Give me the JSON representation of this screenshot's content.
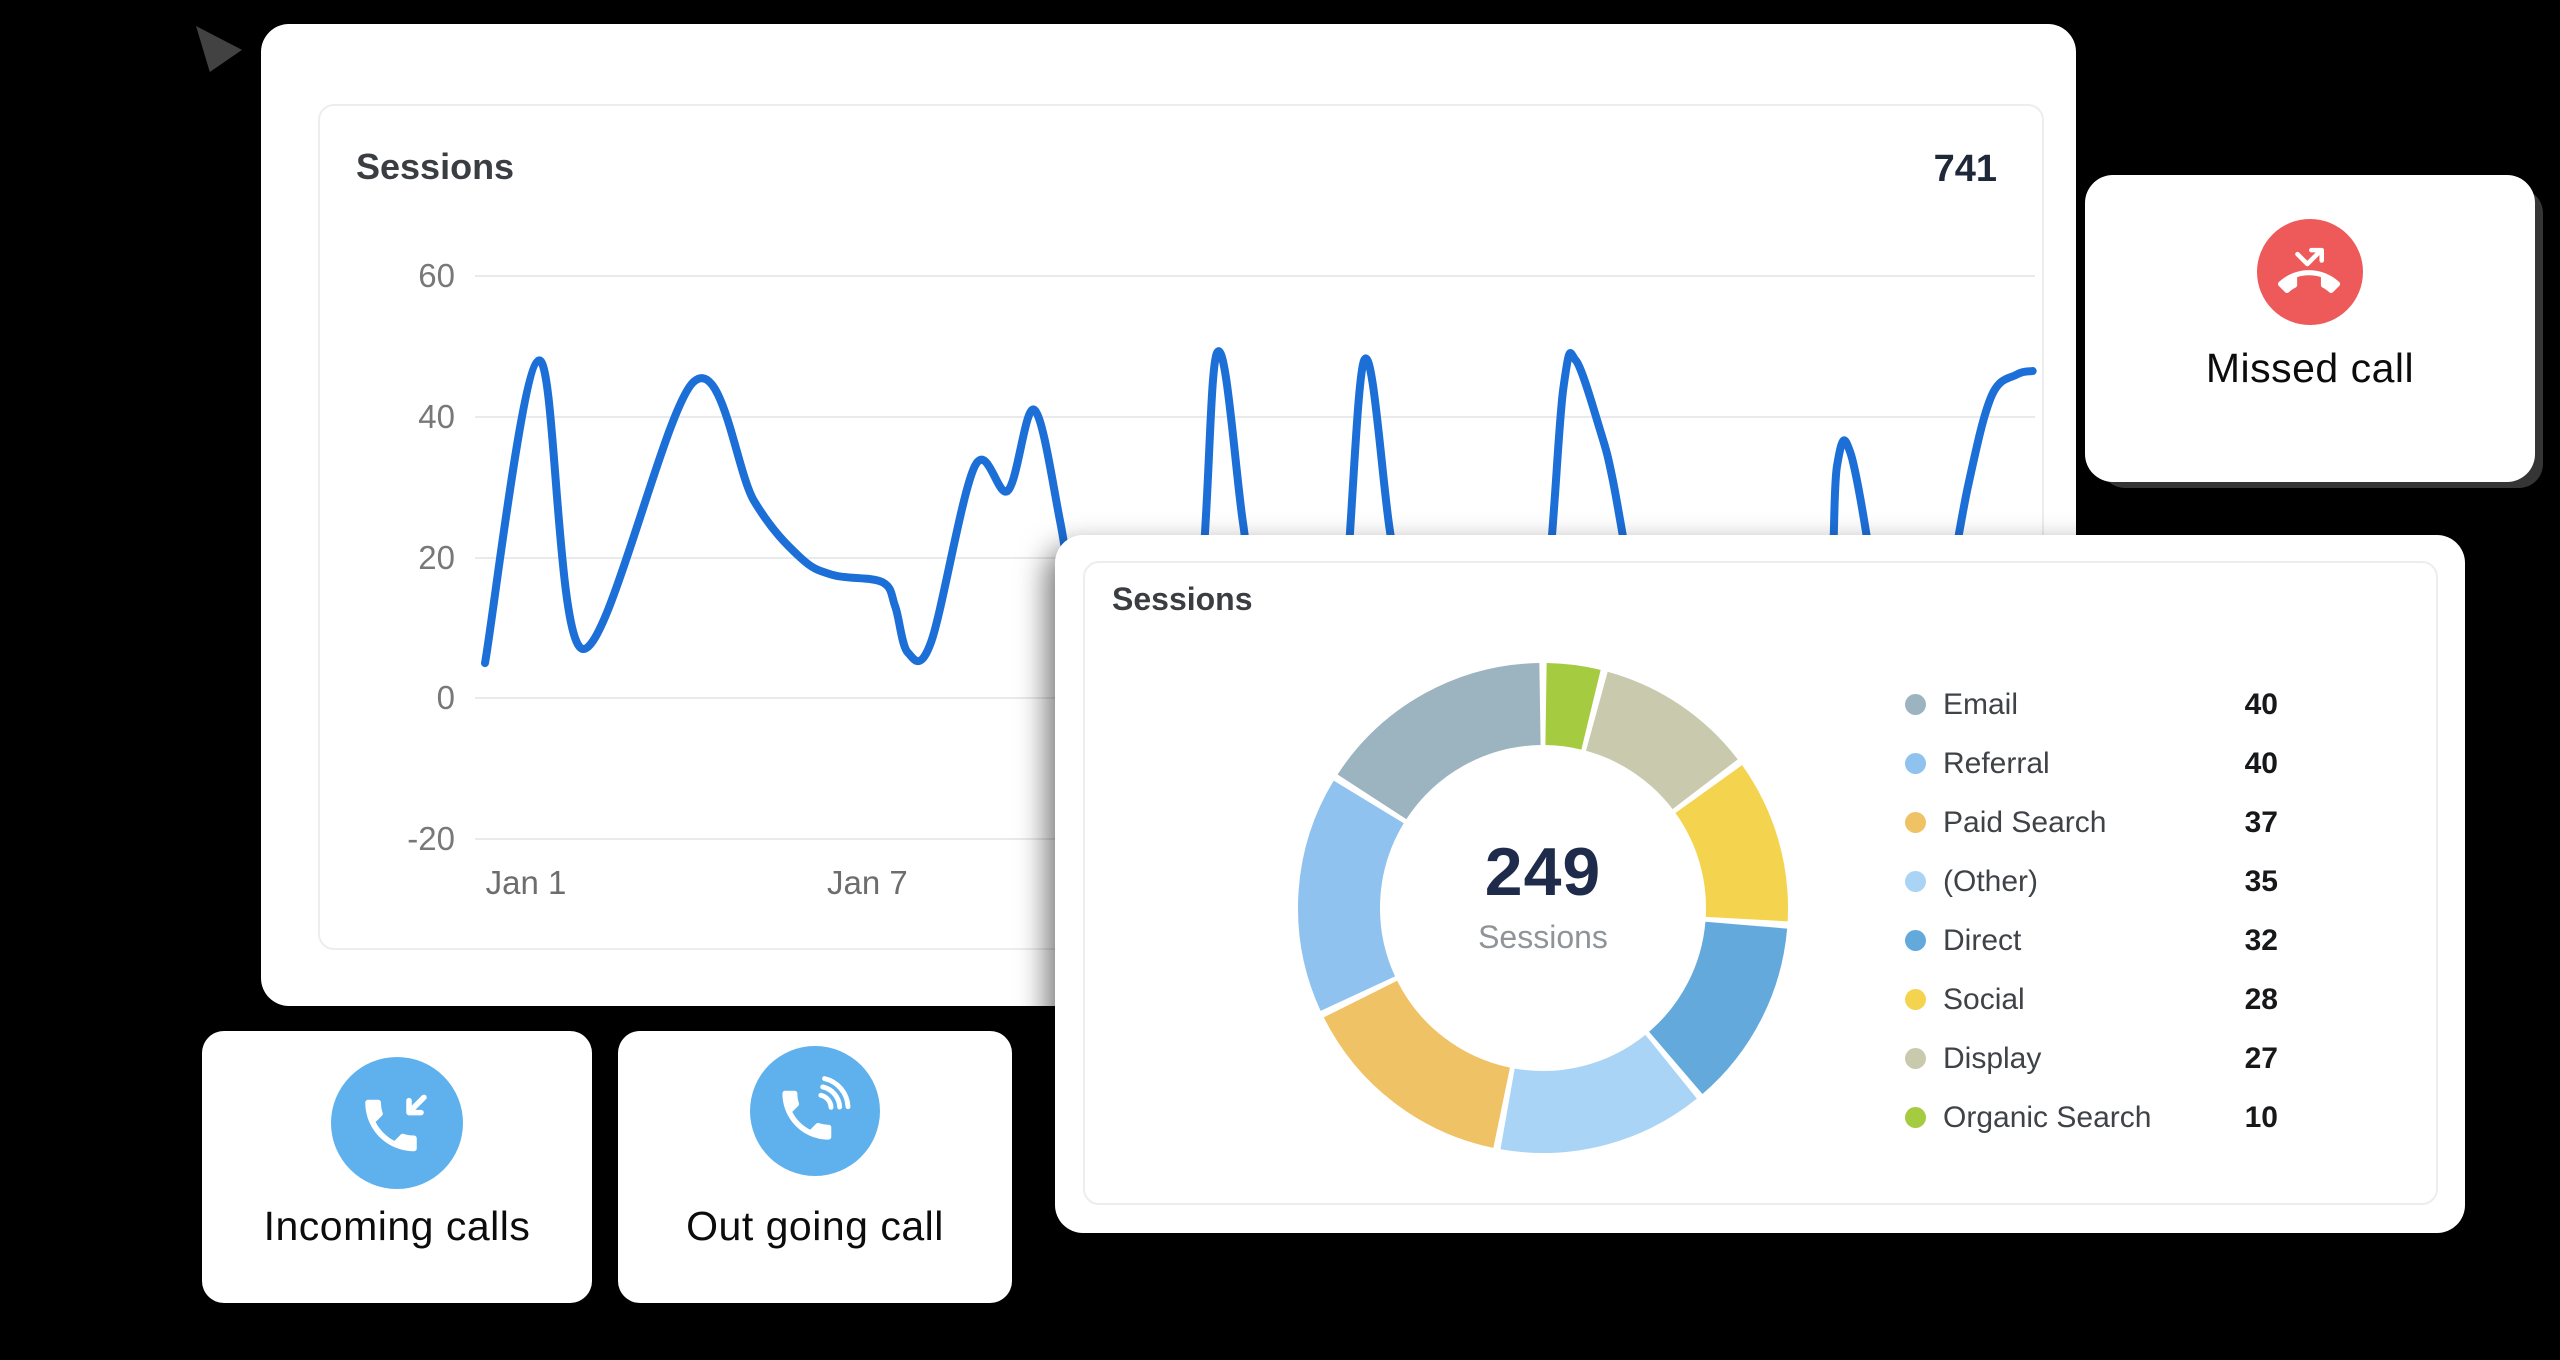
{
  "page": {
    "background": "#000000"
  },
  "chart_data": [
    {
      "type": "line",
      "title": "Sessions",
      "total_label": "741",
      "xlabel": "",
      "ylabel": "",
      "ylim": [
        -20,
        60
      ],
      "y_ticks": [
        60,
        40,
        20,
        0,
        -20
      ],
      "x_ticks": [
        {
          "label": "Jan 1",
          "day": 1
        },
        {
          "label": "Jan 7",
          "day": 7
        }
      ],
      "grid": "horizontal",
      "legend_position": "none",
      "line_color": "#1d6fd8",
      "series": [
        {
          "name": "Sessions",
          "points": [
            [
              0.28,
              5
            ],
            [
              1.23,
              48
            ],
            [
              2.0,
              7
            ],
            [
              3.95,
              45
            ],
            [
              5.01,
              28
            ],
            [
              5.82,
              20
            ],
            [
              6.4,
              17.5
            ],
            [
              7.26,
              16.5
            ],
            [
              7.49,
              13
            ],
            [
              7.71,
              6.5
            ],
            [
              8.12,
              8
            ],
            [
              8.89,
              33
            ],
            [
              9.47,
              29.5
            ],
            [
              9.93,
              41
            ],
            [
              10.39,
              25
            ],
            [
              10.74,
              8
            ],
            [
              11.09,
              5
            ],
            [
              12.67,
              7
            ],
            [
              13.14,
              49
            ],
            [
              13.6,
              25
            ],
            [
              13.93,
              6
            ],
            [
              14.6,
              5
            ],
            [
              15.29,
              7
            ],
            [
              15.73,
              48
            ],
            [
              16.18,
              24
            ],
            [
              16.54,
              6
            ],
            [
              17.42,
              5
            ],
            [
              18.73,
              6
            ],
            [
              19.23,
              44
            ],
            [
              19.45,
              48
            ],
            [
              19.88,
              38
            ],
            [
              20.1,
              31
            ],
            [
              20.46,
              15
            ],
            [
              20.75,
              6
            ],
            [
              21.63,
              5
            ],
            [
              23.67,
              6
            ],
            [
              24.04,
              33
            ],
            [
              24.27,
              35
            ],
            [
              24.62,
              20
            ],
            [
              24.81,
              6
            ],
            [
              25.32,
              5
            ],
            [
              25.76,
              6
            ],
            [
              26.34,
              30
            ],
            [
              26.76,
              43
            ],
            [
              27.2,
              46
            ],
            [
              27.48,
              46.5
            ]
          ]
        }
      ]
    },
    {
      "type": "donut",
      "title": "Sessions",
      "center_value": "249",
      "center_label": "Sessions",
      "legend_position": "right",
      "start": "top",
      "direction": "counterclockwise",
      "segments": [
        {
          "label": "Email",
          "value": 40,
          "color": "#9cb3c0"
        },
        {
          "label": "Referral",
          "value": 40,
          "color": "#8fc2ee"
        },
        {
          "label": "Paid Search",
          "value": 37,
          "color": "#f0c266"
        },
        {
          "label": "(Other)",
          "value": 35,
          "color": "#a9d4f5"
        },
        {
          "label": "Direct",
          "value": 32,
          "color": "#64a9dc"
        },
        {
          "label": "Social",
          "value": 28,
          "color": "#f4d44f"
        },
        {
          "label": "Display",
          "value": 27,
          "color": "#c9c9ae"
        },
        {
          "label": "Organic Search",
          "value": 10,
          "color": "#a5cb40"
        }
      ]
    }
  ],
  "cards": {
    "missed": {
      "label": "Missed call",
      "icon": "missed-call-icon",
      "accent": "#ee5a5a"
    },
    "incoming": {
      "label": "Incoming calls",
      "icon": "incoming-call-icon",
      "accent": "#5fb1ed"
    },
    "outgoing": {
      "label": "Out going call",
      "icon": "outgoing-call-icon",
      "accent": "#5fb1ed"
    }
  }
}
